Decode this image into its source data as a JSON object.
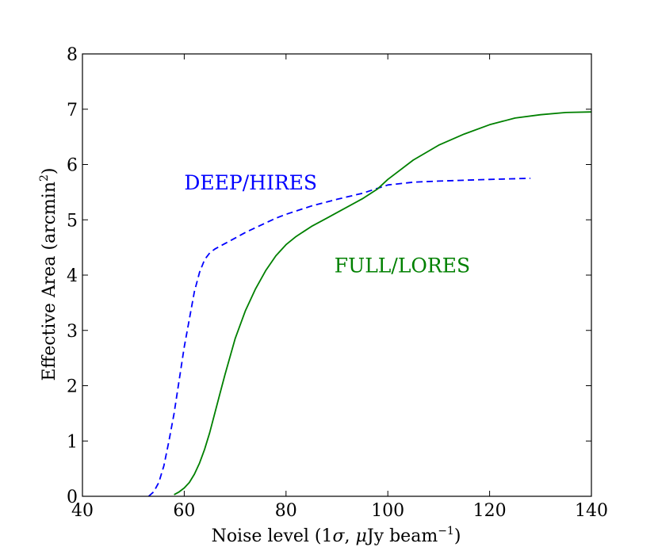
{
  "chart_data": {
    "type": "line",
    "xlabel_parts": [
      "Noise level (1",
      "σ",
      ", ",
      "μ",
      "Jy beam",
      "−1",
      ")"
    ],
    "ylabel_parts": [
      "Effective Area (arcmin",
      "2",
      ")"
    ],
    "xlim": [
      40,
      140
    ],
    "ylim": [
      0,
      8
    ],
    "x_ticks": [
      40,
      60,
      80,
      100,
      120,
      140
    ],
    "y_ticks": [
      0,
      1,
      2,
      3,
      4,
      5,
      6,
      7,
      8
    ],
    "grid": false,
    "series": [
      {
        "name": "DEEP/HIRES",
        "color": "#0000ff",
        "dash": "dashed",
        "x": [
          53,
          54,
          55,
          56,
          57,
          58,
          59,
          60,
          61,
          62,
          63,
          64,
          65,
          66,
          68,
          70,
          72,
          75,
          78,
          80,
          85,
          90,
          95,
          98,
          100,
          105,
          110,
          120,
          128
        ],
        "y": [
          0.0,
          0.08,
          0.25,
          0.55,
          1.0,
          1.5,
          2.1,
          2.7,
          3.2,
          3.7,
          4.05,
          4.28,
          4.4,
          4.47,
          4.57,
          4.67,
          4.77,
          4.9,
          5.03,
          5.1,
          5.25,
          5.37,
          5.48,
          5.57,
          5.63,
          5.68,
          5.7,
          5.73,
          5.75
        ]
      },
      {
        "name": "FULL/LORES",
        "color": "#008000",
        "dash": "solid",
        "x": [
          58,
          59,
          60,
          61,
          62,
          63,
          64,
          65,
          66,
          67,
          68,
          70,
          72,
          74,
          76,
          78,
          80,
          82,
          85,
          88,
          90,
          95,
          98,
          100,
          105,
          110,
          115,
          120,
          125,
          130,
          135,
          140
        ],
        "y": [
          0.03,
          0.08,
          0.15,
          0.25,
          0.4,
          0.6,
          0.85,
          1.15,
          1.5,
          1.85,
          2.2,
          2.85,
          3.35,
          3.75,
          4.08,
          4.35,
          4.55,
          4.7,
          4.88,
          5.03,
          5.13,
          5.38,
          5.56,
          5.73,
          6.08,
          6.35,
          6.55,
          6.72,
          6.84,
          6.9,
          6.94,
          6.95
        ]
      }
    ],
    "annotations": [
      {
        "text": "DEEP/HIRES",
        "x": 60,
        "y": 5.55,
        "color": "#0000ff"
      },
      {
        "text": "FULL/LORES",
        "x": 89.5,
        "y": 4.05,
        "color": "#008000"
      }
    ]
  }
}
